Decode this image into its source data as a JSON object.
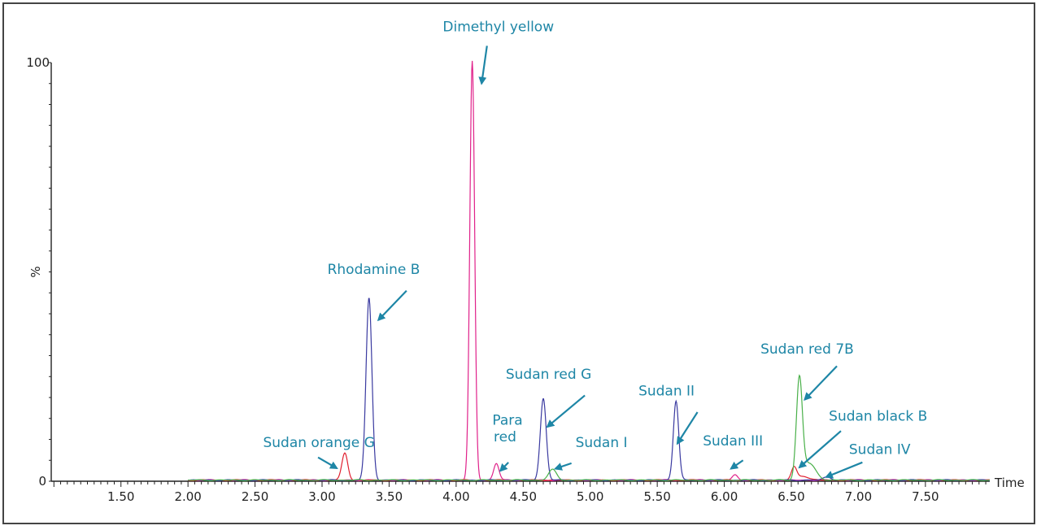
{
  "chart_data": {
    "type": "line",
    "title": "",
    "xlabel": "Time",
    "ylabel": "%",
    "xlim": [
      0.98,
      7.98
    ],
    "ylim": [
      0,
      100
    ],
    "x_ticks": [
      "1.50",
      "2.00",
      "2.50",
      "3.00",
      "3.50",
      "4.00",
      "4.50",
      "5.00",
      "5.50",
      "6.00",
      "6.50",
      "7.00",
      "7.50"
    ],
    "x_tick_values": [
      1.5,
      2.0,
      2.5,
      3.0,
      3.5,
      4.0,
      4.5,
      5.0,
      5.5,
      6.0,
      6.5,
      7.0,
      7.5
    ],
    "y_ticks": [
      "0",
      "%",
      "100"
    ],
    "grid": false,
    "legend": "none",
    "baseline_start": 2.0,
    "baseline_end": 7.98,
    "series": [
      {
        "color": "#e0218a",
        "peaks": [
          {
            "x": 4.12,
            "y": 100,
            "sigma": 0.018
          },
          {
            "x": 4.3,
            "y": 4,
            "sigma": 0.02
          },
          {
            "x": 6.08,
            "y": 1.2,
            "sigma": 0.02
          }
        ]
      },
      {
        "color": "#e02030",
        "peaks": [
          {
            "x": 3.17,
            "y": 6.5,
            "sigma": 0.022
          },
          {
            "x": 6.52,
            "y": 3,
            "sigma": 0.02
          },
          {
            "x": 6.59,
            "y": 1,
            "sigma": 0.04
          }
        ]
      },
      {
        "color": "#3a3aa0",
        "peaks": [
          {
            "x": 3.35,
            "y": 43.5,
            "sigma": 0.022
          },
          {
            "x": 4.65,
            "y": 19.5,
            "sigma": 0.022
          },
          {
            "x": 5.64,
            "y": 19,
            "sigma": 0.02
          },
          {
            "x": 6.77,
            "y": 0.8,
            "sigma": 0.03
          }
        ]
      },
      {
        "color": "#49b049",
        "peaks": [
          {
            "x": 4.72,
            "y": 2.5,
            "sigma": 0.03
          },
          {
            "x": 6.56,
            "y": 23.5,
            "sigma": 0.022
          },
          {
            "x": 6.63,
            "y": 4,
            "sigma": 0.05
          }
        ]
      }
    ],
    "annotations": [
      {
        "label": "Dimethyl yellow",
        "text_x": 3.9,
        "text_y": 107.5,
        "arrow_from": [
          4.23,
          104
        ],
        "arrow_to": [
          4.19,
          95
        ]
      },
      {
        "label": "Rhodamine B",
        "text_x": 3.04,
        "text_y": 49.5,
        "arrow_from": [
          3.63,
          45.5
        ],
        "arrow_to": [
          3.42,
          38.5
        ]
      },
      {
        "label": "Sudan red G",
        "text_x": 4.37,
        "text_y": 24.5,
        "arrow_from": [
          4.96,
          20.5
        ],
        "arrow_to": [
          4.68,
          13
        ]
      },
      {
        "label": "Para",
        "text_x": 4.27,
        "text_y": 13.5,
        "arrow_from": [
          4.39,
          4.5
        ],
        "arrow_to": [
          4.33,
          2.5
        ]
      },
      {
        "label": "red",
        "text_x": 4.28,
        "text_y": 9.5
      },
      {
        "label": "Sudan I",
        "text_x": 4.89,
        "text_y": 8.2,
        "arrow_from": [
          4.86,
          4.3
        ],
        "arrow_to": [
          4.74,
          3.0
        ]
      },
      {
        "label": "Sudan orange G",
        "text_x": 2.56,
        "text_y": 8.2,
        "arrow_from": [
          2.97,
          5.7
        ],
        "arrow_to": [
          3.11,
          3.1
        ]
      },
      {
        "label": "Sudan II",
        "text_x": 5.36,
        "text_y": 20.5,
        "arrow_from": [
          5.8,
          16.5
        ],
        "arrow_to": [
          5.65,
          9
        ]
      },
      {
        "label": "Sudan III",
        "text_x": 5.84,
        "text_y": 8.5,
        "arrow_from": [
          6.14,
          5.0
        ],
        "arrow_to": [
          6.05,
          3.0
        ]
      },
      {
        "label": "Sudan red 7B",
        "text_x": 6.27,
        "text_y": 30.5,
        "arrow_from": [
          6.84,
          27.5
        ],
        "arrow_to": [
          6.6,
          19.5
        ]
      },
      {
        "label": "Sudan black B",
        "text_x": 6.78,
        "text_y": 14.5,
        "arrow_from": [
          6.87,
          12
        ],
        "arrow_to": [
          6.56,
          3.3
        ]
      },
      {
        "label": "Sudan IV",
        "text_x": 6.93,
        "text_y": 6.5,
        "arrow_from": [
          7.03,
          4.5
        ],
        "arrow_to": [
          6.76,
          1.0
        ]
      }
    ]
  }
}
